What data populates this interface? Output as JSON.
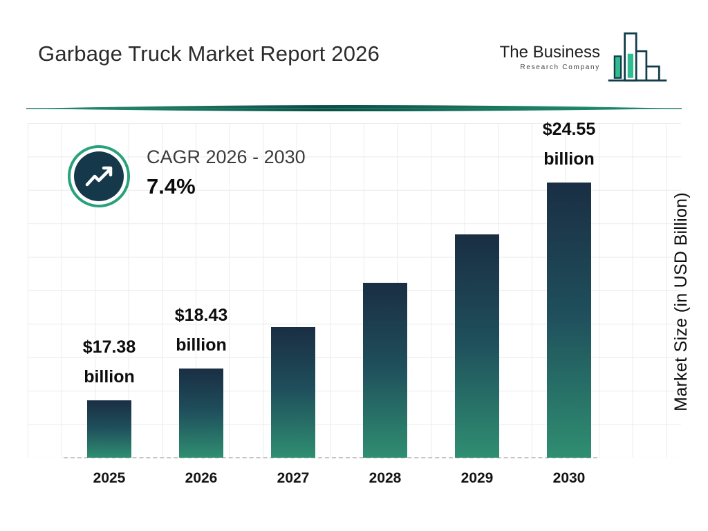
{
  "header": {
    "title": "Garbage Truck Market Report 2026"
  },
  "logo": {
    "line1": "The Business",
    "line2": "Research Company"
  },
  "cagr": {
    "label": "CAGR 2026 - 2030",
    "value": "7.4%"
  },
  "chart_data": {
    "type": "bar",
    "title": "Garbage Truck Market Report 2026",
    "categories": [
      "2025",
      "2026",
      "2027",
      "2028",
      "2029",
      "2030"
    ],
    "values": [
      17.38,
      18.43,
      19.79,
      21.25,
      22.83,
      24.55
    ],
    "bar_labels": [
      [
        "$17.38",
        "billion"
      ],
      [
        "$18.43",
        "billion"
      ],
      null,
      null,
      null,
      [
        "$24.55",
        "billion"
      ]
    ],
    "xlabel": "",
    "ylabel": "Market Size (in USD Billion)",
    "ylim": [
      15.5,
      26.5
    ],
    "grid": true,
    "legend": false,
    "colors": {
      "bar_top": "#1a2e43",
      "bar_bottom": "#2f8e71",
      "accent_teal": "#2aa17c",
      "dark_navy": "#15394a"
    }
  }
}
